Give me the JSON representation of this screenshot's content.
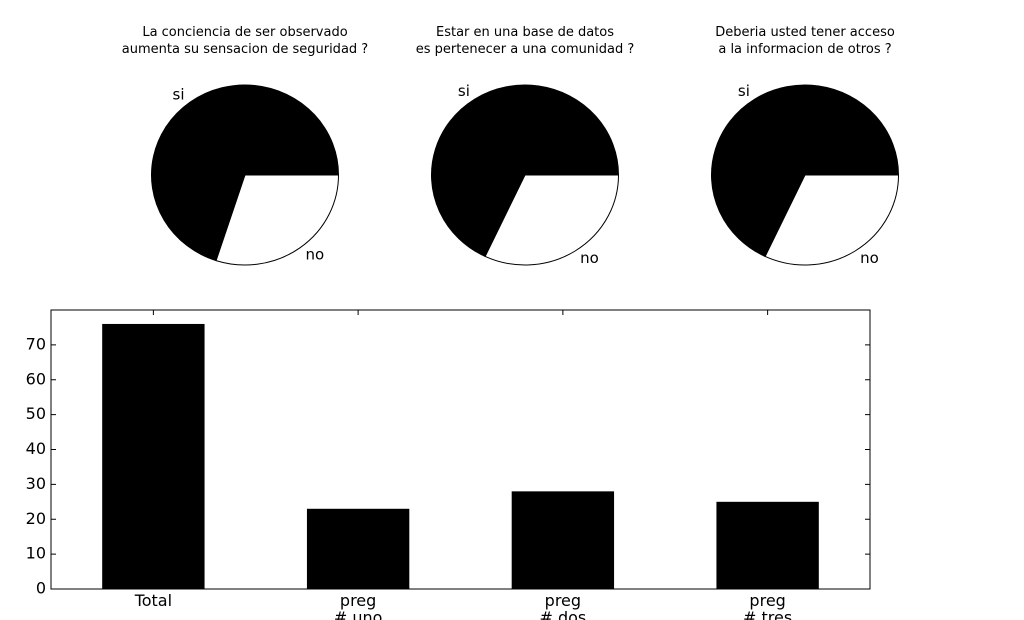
{
  "chart_data": [
    {
      "type": "pie",
      "title": "La conciencia de ser observado\naumenta su sensacion de seguridad ?",
      "categories": [
        "si",
        "no"
      ],
      "values": [
        70,
        30
      ],
      "colors": [
        "#000000",
        "#ffffff"
      ]
    },
    {
      "type": "pie",
      "title": "Estar en una base de datos\nes pertenecer a una comunidad ?",
      "categories": [
        "si",
        "no"
      ],
      "values": [
        68,
        32
      ],
      "colors": [
        "#000000",
        "#ffffff"
      ]
    },
    {
      "type": "pie",
      "title": "Deberia usted tener acceso\na la informacion de otros ?",
      "categories": [
        "si",
        "no"
      ],
      "values": [
        68,
        32
      ],
      "colors": [
        "#000000",
        "#ffffff"
      ]
    },
    {
      "type": "bar",
      "categories": [
        "Total",
        "preg\n# uno",
        "preg\n# dos",
        "preg\n# tres"
      ],
      "values": [
        76,
        23,
        28,
        25
      ],
      "color": "#000000",
      "ylim": [
        0,
        80
      ],
      "yticks": [
        0,
        10,
        20,
        30,
        40,
        50,
        60,
        70
      ]
    }
  ]
}
